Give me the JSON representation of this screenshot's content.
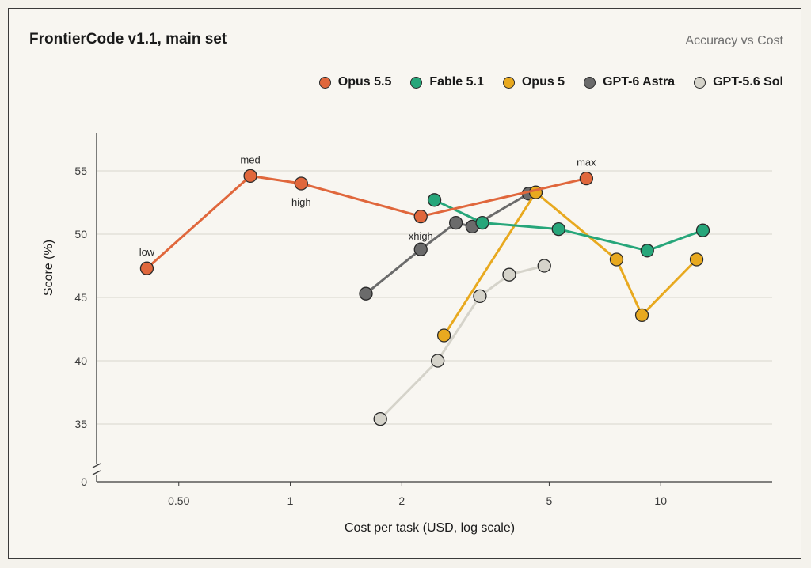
{
  "chart_data": {
    "type": "line",
    "title": "FrontierCode v1.1, main set",
    "subtitle": "Accuracy vs Cost",
    "xlabel": "Cost per task (USD, log scale)",
    "ylabel": "Score (%)",
    "x_scale": "log",
    "xlim": [
      0.3,
      20
    ],
    "ylim": [
      0,
      58
    ],
    "x_ticks": [
      0.5,
      1,
      2,
      5,
      10
    ],
    "x_tick_labels": [
      "0.50",
      "1",
      "2",
      "5",
      "10"
    ],
    "y_ticks": [
      0,
      35,
      40,
      45,
      50,
      55
    ],
    "y_axis_break": true,
    "grid": "horizontal",
    "legend_position": "top-right",
    "series": [
      {
        "name": "Opus 5.5",
        "color": "#e0673c",
        "points": [
          {
            "x": 0.41,
            "y": 47.3,
            "label": "low"
          },
          {
            "x": 0.78,
            "y": 54.6,
            "label": "med"
          },
          {
            "x": 1.07,
            "y": 54.0,
            "label": "high"
          },
          {
            "x": 2.25,
            "y": 51.4,
            "label": "xhigh"
          },
          {
            "x": 6.3,
            "y": 54.4,
            "label": "max"
          }
        ]
      },
      {
        "name": "Fable 5.1",
        "color": "#27a67a",
        "points": [
          {
            "x": 2.45,
            "y": 52.7
          },
          {
            "x": 3.3,
            "y": 50.9
          },
          {
            "x": 5.3,
            "y": 50.4
          },
          {
            "x": 9.2,
            "y": 48.7
          },
          {
            "x": 13.0,
            "y": 50.3
          }
        ]
      },
      {
        "name": "Opus 5",
        "color": "#e8a91f",
        "points": [
          {
            "x": 2.6,
            "y": 42.0
          },
          {
            "x": 4.6,
            "y": 53.3
          },
          {
            "x": 7.6,
            "y": 48.0
          },
          {
            "x": 8.9,
            "y": 43.6
          },
          {
            "x": 12.5,
            "y": 48.0
          }
        ]
      },
      {
        "name": "GPT-6 Astra",
        "color": "#6b6b6b",
        "points": [
          {
            "x": 1.6,
            "y": 45.3
          },
          {
            "x": 2.25,
            "y": 48.8
          },
          {
            "x": 2.8,
            "y": 50.9
          },
          {
            "x": 3.1,
            "y": 50.6
          },
          {
            "x": 4.4,
            "y": 53.2
          }
        ]
      },
      {
        "name": "GPT-5.6 Sol",
        "color": "#d5d3ca",
        "points": [
          {
            "x": 1.75,
            "y": 35.4
          },
          {
            "x": 2.5,
            "y": 40.0
          },
          {
            "x": 3.25,
            "y": 45.1
          },
          {
            "x": 3.9,
            "y": 46.8
          },
          {
            "x": 4.85,
            "y": 47.5
          }
        ]
      }
    ]
  }
}
